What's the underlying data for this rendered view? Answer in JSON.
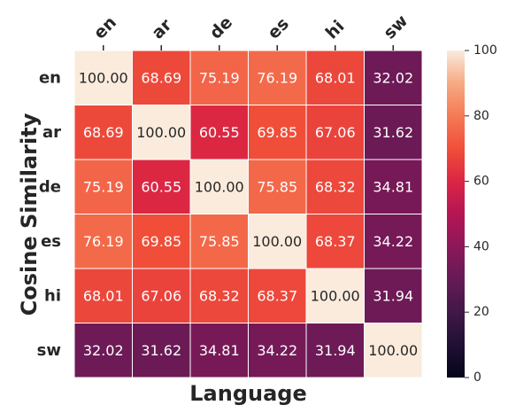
{
  "chart_data": {
    "type": "heatmap",
    "title": "",
    "xlabel": "Language",
    "ylabel": "Cosine Similarity",
    "x_tick_position": "top",
    "rows": [
      "en",
      "ar",
      "de",
      "es",
      "hi",
      "sw"
    ],
    "columns": [
      "en",
      "ar",
      "de",
      "es",
      "hi",
      "sw"
    ],
    "values": [
      [
        100.0,
        68.69,
        75.19,
        76.19,
        68.01,
        32.02
      ],
      [
        68.69,
        100.0,
        60.55,
        69.85,
        67.06,
        31.62
      ],
      [
        75.19,
        60.55,
        100.0,
        75.85,
        68.32,
        34.81
      ],
      [
        76.19,
        69.85,
        75.85,
        100.0,
        68.37,
        34.22
      ],
      [
        68.01,
        67.06,
        68.32,
        68.37,
        100.0,
        31.94
      ],
      [
        32.02,
        31.62,
        34.81,
        34.22,
        31.94,
        100.0
      ]
    ],
    "cell_labels": [
      [
        "100.00",
        "68.69",
        "75.19",
        "76.19",
        "68.01",
        "32.02"
      ],
      [
        "68.69",
        "100.00",
        "60.55",
        "69.85",
        "67.06",
        "31.62"
      ],
      [
        "75.19",
        "60.55",
        "100.00",
        "75.85",
        "68.32",
        "34.81"
      ],
      [
        "76.19",
        "69.85",
        "75.85",
        "100.00",
        "68.37",
        "34.22"
      ],
      [
        "68.01",
        "67.06",
        "68.32",
        "68.37",
        "100.00",
        "31.94"
      ],
      [
        "32.02",
        "31.62",
        "34.81",
        "34.22",
        "31.94",
        "100.00"
      ]
    ],
    "colormap": "rocket",
    "colorbar": {
      "range": [
        0,
        100
      ],
      "ticks": [
        0,
        20,
        40,
        60,
        80,
        100
      ],
      "tick_labels": [
        "0",
        "20",
        "40",
        "60",
        "80",
        "100"
      ]
    },
    "colors": {
      "grid_line": "#ffffff",
      "text_dark": "#262626",
      "text_light": "#ffffff"
    }
  }
}
